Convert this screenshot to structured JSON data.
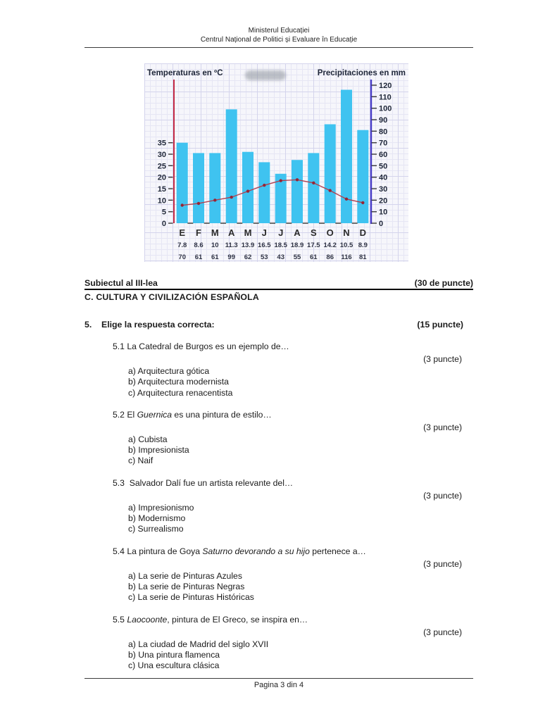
{
  "header": {
    "line1": "Ministerul Educației",
    "line2": "Centrul Național de Politici și Evaluare în Educație"
  },
  "chart_data": {
    "type": "bar",
    "subtype": "climograph: monthly precipitation bars with temperature line overlay",
    "categories": [
      "E",
      "F",
      "M",
      "A",
      "M",
      "J",
      "J",
      "A",
      "S",
      "O",
      "N",
      "D"
    ],
    "series": [
      {
        "name": "Precipitaciones en mm",
        "type": "bar",
        "values": [
          70,
          61,
          61,
          99,
          62,
          53,
          43,
          55,
          61,
          86,
          116,
          81
        ]
      },
      {
        "name": "Temperaturas en ºC",
        "type": "line",
        "values": [
          7.8,
          8.6,
          10,
          11.3,
          13.9,
          16.5,
          18.5,
          18.9,
          17.5,
          14.2,
          10.5,
          8.9
        ]
      }
    ],
    "left_axis_label": "Temperaturas en ºC",
    "right_axis_label": "Precipitaciones en mm",
    "left_axis_ticks": [
      0,
      5,
      10,
      15,
      20,
      25,
      30,
      35
    ],
    "right_axis_ticks": [
      0,
      10,
      20,
      30,
      40,
      50,
      60,
      70,
      80,
      90,
      100,
      110,
      120
    ],
    "left_axis_range": [
      0,
      60
    ],
    "right_axis_range": [
      0,
      120
    ],
    "grid": true,
    "legend_position": "none",
    "colors": {
      "bar": "#3fc3f0",
      "line": "#b04050",
      "point": "#952636",
      "left_axis": "#c42b45",
      "right_axis": "#4a3ec8",
      "axis_text": "#1e2638",
      "table_text": "#2f3344",
      "grid_minor": "#e6e6f4",
      "grid_major": "#d4d4ec",
      "background": "#f6f6fb"
    }
  },
  "section": {
    "subject_title": "Subiectul al III-lea",
    "subject_points": "(30 de puncte)",
    "section_title": "C. CULTURA Y CIVILIZACIÓN ESPAÑOLA"
  },
  "quiz": {
    "number": "5.",
    "prompt": "Elige la respuesta correcta:",
    "points": "(15 puncte)",
    "questions": [
      {
        "num": "5.1",
        "points": "(3 puncte)",
        "parts": [
          {
            "t": "La Catedral de Burgos es un ejemplo de…",
            "i": false
          }
        ],
        "options": [
          "a) Arquitectura gótica",
          "b) Arquitectura modernista",
          "c) Arquitectura renacentista"
        ]
      },
      {
        "num": "5.2",
        "points": "(3 puncte)",
        "parts": [
          {
            "t": "El ",
            "i": false
          },
          {
            "t": "Guernica",
            "i": true
          },
          {
            "t": " es una pintura de estilo…",
            "i": false
          }
        ],
        "options": [
          "a) Cubista",
          "b) Impresionista",
          "c) Naif"
        ]
      },
      {
        "num": "5.3",
        "points": "(3 puncte)",
        "parts": [
          {
            "t": " Salvador Dalí fue un artista relevante del…",
            "i": false
          }
        ],
        "options": [
          "a) Impresionismo",
          "b) Modernismo",
          "c) Surrealismo"
        ]
      },
      {
        "num": "5.4",
        "points": "(3 puncte)",
        "parts": [
          {
            "t": "La pintura de Goya ",
            "i": false
          },
          {
            "t": "Saturno devorando a su hijo",
            "i": true
          },
          {
            "t": " pertenece a…",
            "i": false
          }
        ],
        "options": [
          "a) La serie de Pinturas Azules",
          "b) La serie de Pinturas Negras",
          "c) La serie de Pinturas Históricas"
        ]
      },
      {
        "num": "5.5",
        "points": "(3 puncte)",
        "parts": [
          {
            "t": "Laocoonte",
            "i": true
          },
          {
            "t": ", pintura de El Greco, se inspira en…",
            "i": false
          }
        ],
        "options": [
          "a) La ciudad de Madrid del siglo XVII",
          "b) Una pintura flamenca",
          "c) Una escultura clásica"
        ]
      }
    ]
  },
  "footer": {
    "page_label": "Pagina 3 din 4"
  }
}
